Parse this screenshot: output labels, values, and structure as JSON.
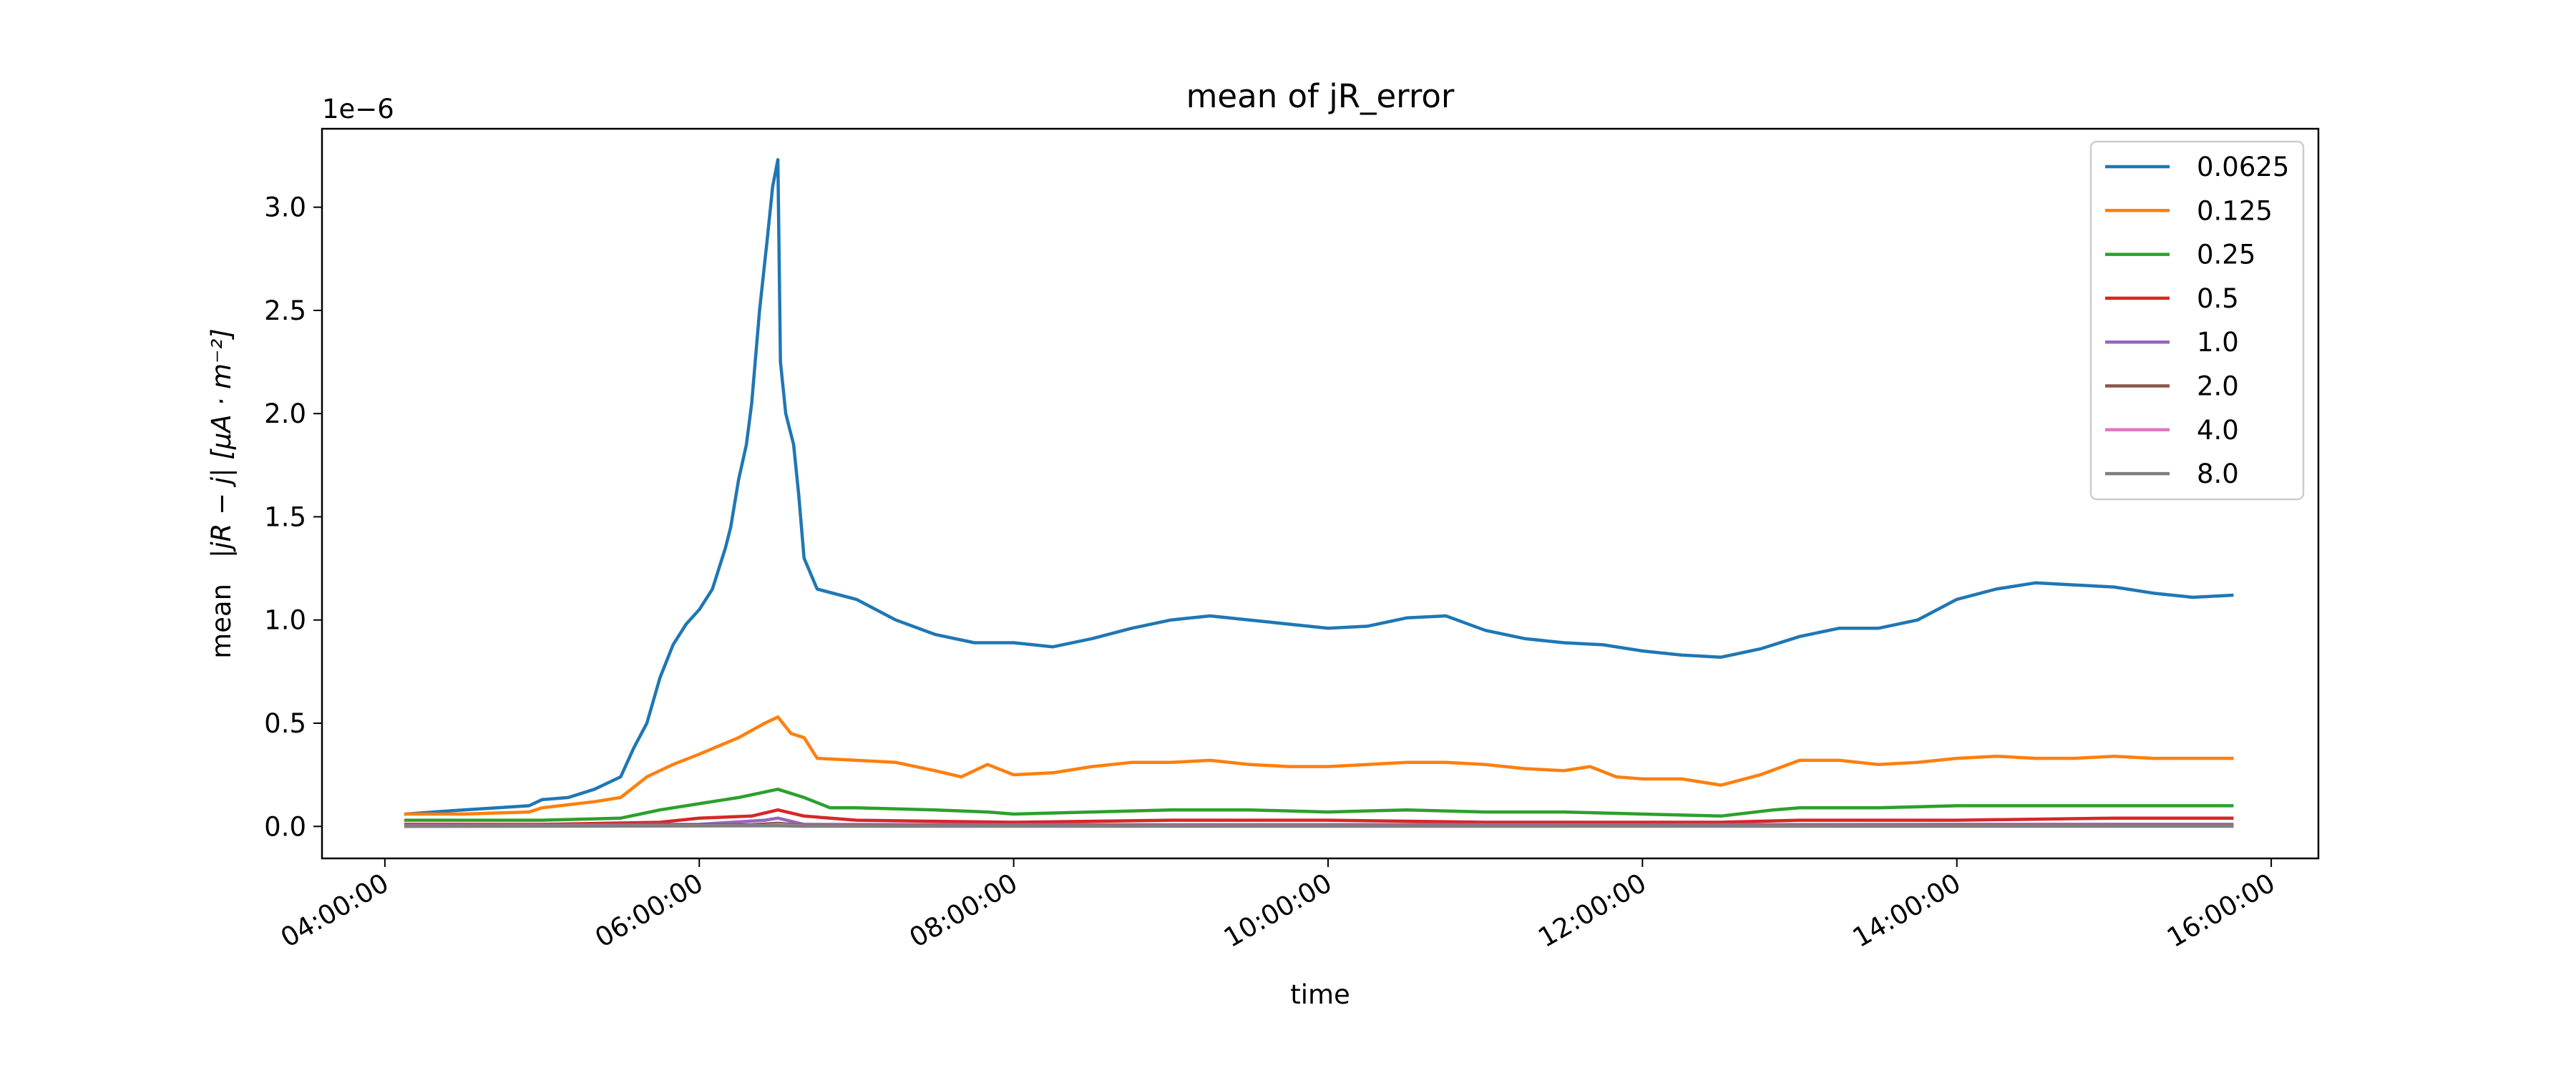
{
  "chart_data": {
    "type": "line",
    "title": "mean of jR_error",
    "xlabel": "time",
    "ylabel_prefix": "mean",
    "ylabel_math": "|jR − j| [μA · m⁻²]",
    "y_offset_label": "1e−6",
    "y_scale_factor": 1e-06,
    "xlim": [
      "03:36:00",
      "16:18:00"
    ],
    "ylim": [
      -0.155,
      3.38
    ],
    "x_ticks": [
      "04:00:00",
      "06:00:00",
      "08:00:00",
      "10:00:00",
      "12:00:00",
      "14:00:00",
      "16:00:00"
    ],
    "y_ticks": [
      "0.0",
      "0.5",
      "1.0",
      "1.5",
      "2.0",
      "2.5",
      "3.0"
    ],
    "grid": false,
    "legend_position": "upper right",
    "series": [
      {
        "name": "0.0625",
        "color": "#1f77b4",
        "points": [
          [
            "04:08:00",
            0.06
          ],
          [
            "04:30:00",
            0.08
          ],
          [
            "04:55:00",
            0.1
          ],
          [
            "05:00:00",
            0.13
          ],
          [
            "05:10:00",
            0.14
          ],
          [
            "05:20:00",
            0.18
          ],
          [
            "05:30:00",
            0.24
          ],
          [
            "05:35:00",
            0.38
          ],
          [
            "05:40:00",
            0.5
          ],
          [
            "05:45:00",
            0.72
          ],
          [
            "05:50:00",
            0.88
          ],
          [
            "05:55:00",
            0.98
          ],
          [
            "06:00:00",
            1.05
          ],
          [
            "06:05:00",
            1.15
          ],
          [
            "06:10:00",
            1.35
          ],
          [
            "06:12:00",
            1.45
          ],
          [
            "06:15:00",
            1.68
          ],
          [
            "06:18:00",
            1.85
          ],
          [
            "06:20:00",
            2.05
          ],
          [
            "06:23:00",
            2.5
          ],
          [
            "06:26:00",
            2.85
          ],
          [
            "06:28:00",
            3.1
          ],
          [
            "06:30:00",
            3.23
          ],
          [
            "06:31:00",
            2.25
          ],
          [
            "06:33:00",
            2.0
          ],
          [
            "06:36:00",
            1.85
          ],
          [
            "06:38:00",
            1.6
          ],
          [
            "06:40:00",
            1.3
          ],
          [
            "06:45:00",
            1.15
          ],
          [
            "07:00:00",
            1.1
          ],
          [
            "07:15:00",
            1.0
          ],
          [
            "07:30:00",
            0.93
          ],
          [
            "07:45:00",
            0.89
          ],
          [
            "08:00:00",
            0.89
          ],
          [
            "08:15:00",
            0.87
          ],
          [
            "08:30:00",
            0.91
          ],
          [
            "08:45:00",
            0.96
          ],
          [
            "09:00:00",
            1.0
          ],
          [
            "09:15:00",
            1.02
          ],
          [
            "09:30:00",
            1.0
          ],
          [
            "09:45:00",
            0.98
          ],
          [
            "10:00:00",
            0.96
          ],
          [
            "10:15:00",
            0.97
          ],
          [
            "10:30:00",
            1.01
          ],
          [
            "10:45:00",
            1.02
          ],
          [
            "11:00:00",
            0.95
          ],
          [
            "11:15:00",
            0.91
          ],
          [
            "11:30:00",
            0.89
          ],
          [
            "11:45:00",
            0.88
          ],
          [
            "12:00:00",
            0.85
          ],
          [
            "12:15:00",
            0.83
          ],
          [
            "12:30:00",
            0.82
          ],
          [
            "12:45:00",
            0.86
          ],
          [
            "13:00:00",
            0.92
          ],
          [
            "13:15:00",
            0.96
          ],
          [
            "13:30:00",
            0.96
          ],
          [
            "13:45:00",
            1.0
          ],
          [
            "14:00:00",
            1.1
          ],
          [
            "14:15:00",
            1.15
          ],
          [
            "14:30:00",
            1.18
          ],
          [
            "14:45:00",
            1.17
          ],
          [
            "15:00:00",
            1.16
          ],
          [
            "15:15:00",
            1.13
          ],
          [
            "15:30:00",
            1.11
          ],
          [
            "15:45:00",
            1.12
          ]
        ]
      },
      {
        "name": "0.125",
        "color": "#ff7f0e",
        "points": [
          [
            "04:08:00",
            0.06
          ],
          [
            "04:30:00",
            0.06
          ],
          [
            "04:55:00",
            0.07
          ],
          [
            "05:00:00",
            0.09
          ],
          [
            "05:20:00",
            0.12
          ],
          [
            "05:30:00",
            0.14
          ],
          [
            "05:40:00",
            0.24
          ],
          [
            "05:50:00",
            0.3
          ],
          [
            "06:00:00",
            0.35
          ],
          [
            "06:15:00",
            0.43
          ],
          [
            "06:25:00",
            0.5
          ],
          [
            "06:30:00",
            0.53
          ],
          [
            "06:35:00",
            0.45
          ],
          [
            "06:40:00",
            0.43
          ],
          [
            "06:45:00",
            0.33
          ],
          [
            "07:00:00",
            0.32
          ],
          [
            "07:15:00",
            0.31
          ],
          [
            "07:30:00",
            0.27
          ],
          [
            "07:40:00",
            0.24
          ],
          [
            "07:50:00",
            0.3
          ],
          [
            "08:00:00",
            0.25
          ],
          [
            "08:15:00",
            0.26
          ],
          [
            "08:30:00",
            0.29
          ],
          [
            "08:45:00",
            0.31
          ],
          [
            "09:00:00",
            0.31
          ],
          [
            "09:15:00",
            0.32
          ],
          [
            "09:30:00",
            0.3
          ],
          [
            "09:45:00",
            0.29
          ],
          [
            "10:00:00",
            0.29
          ],
          [
            "10:15:00",
            0.3
          ],
          [
            "10:30:00",
            0.31
          ],
          [
            "10:45:00",
            0.31
          ],
          [
            "11:00:00",
            0.3
          ],
          [
            "11:15:00",
            0.28
          ],
          [
            "11:30:00",
            0.27
          ],
          [
            "11:40:00",
            0.29
          ],
          [
            "11:50:00",
            0.24
          ],
          [
            "12:00:00",
            0.23
          ],
          [
            "12:15:00",
            0.23
          ],
          [
            "12:30:00",
            0.2
          ],
          [
            "12:45:00",
            0.25
          ],
          [
            "13:00:00",
            0.32
          ],
          [
            "13:15:00",
            0.32
          ],
          [
            "13:30:00",
            0.3
          ],
          [
            "13:45:00",
            0.31
          ],
          [
            "14:00:00",
            0.33
          ],
          [
            "14:15:00",
            0.34
          ],
          [
            "14:30:00",
            0.33
          ],
          [
            "14:45:00",
            0.33
          ],
          [
            "15:00:00",
            0.34
          ],
          [
            "15:15:00",
            0.33
          ],
          [
            "15:30:00",
            0.33
          ],
          [
            "15:45:00",
            0.33
          ]
        ]
      },
      {
        "name": "0.25",
        "color": "#2ca02c",
        "points": [
          [
            "04:08:00",
            0.03
          ],
          [
            "04:30:00",
            0.03
          ],
          [
            "05:00:00",
            0.03
          ],
          [
            "05:30:00",
            0.04
          ],
          [
            "05:45:00",
            0.08
          ],
          [
            "06:00:00",
            0.11
          ],
          [
            "06:15:00",
            0.14
          ],
          [
            "06:30:00",
            0.18
          ],
          [
            "06:40:00",
            0.14
          ],
          [
            "06:50:00",
            0.09
          ],
          [
            "07:00:00",
            0.09
          ],
          [
            "07:30:00",
            0.08
          ],
          [
            "07:50:00",
            0.07
          ],
          [
            "08:00:00",
            0.06
          ],
          [
            "08:30:00",
            0.07
          ],
          [
            "09:00:00",
            0.08
          ],
          [
            "09:30:00",
            0.08
          ],
          [
            "10:00:00",
            0.07
          ],
          [
            "10:30:00",
            0.08
          ],
          [
            "11:00:00",
            0.07
          ],
          [
            "11:30:00",
            0.07
          ],
          [
            "12:00:00",
            0.06
          ],
          [
            "12:30:00",
            0.05
          ],
          [
            "12:50:00",
            0.08
          ],
          [
            "13:00:00",
            0.09
          ],
          [
            "13:30:00",
            0.09
          ],
          [
            "14:00:00",
            0.1
          ],
          [
            "14:30:00",
            0.1
          ],
          [
            "15:00:00",
            0.1
          ],
          [
            "15:45:00",
            0.1
          ]
        ]
      },
      {
        "name": "0.5",
        "color": "#d62728",
        "points": [
          [
            "04:08:00",
            0.01
          ],
          [
            "05:00:00",
            0.01
          ],
          [
            "05:45:00",
            0.02
          ],
          [
            "06:00:00",
            0.04
          ],
          [
            "06:20:00",
            0.05
          ],
          [
            "06:30:00",
            0.08
          ],
          [
            "06:40:00",
            0.05
          ],
          [
            "07:00:00",
            0.03
          ],
          [
            "08:00:00",
            0.02
          ],
          [
            "09:00:00",
            0.03
          ],
          [
            "10:00:00",
            0.03
          ],
          [
            "11:00:00",
            0.02
          ],
          [
            "12:00:00",
            0.02
          ],
          [
            "12:30:00",
            0.02
          ],
          [
            "13:00:00",
            0.03
          ],
          [
            "14:00:00",
            0.03
          ],
          [
            "15:00:00",
            0.04
          ],
          [
            "15:45:00",
            0.04
          ]
        ]
      },
      {
        "name": "1.0",
        "color": "#9467bd",
        "points": [
          [
            "04:08:00",
            0.005
          ],
          [
            "06:00:00",
            0.01
          ],
          [
            "06:25:00",
            0.03
          ],
          [
            "06:30:00",
            0.04
          ],
          [
            "06:40:00",
            0.01
          ],
          [
            "08:00:00",
            0.008
          ],
          [
            "10:00:00",
            0.009
          ],
          [
            "12:00:00",
            0.008
          ],
          [
            "14:00:00",
            0.01
          ],
          [
            "15:45:00",
            0.01
          ]
        ]
      },
      {
        "name": "2.0",
        "color": "#8c564b",
        "points": [
          [
            "04:08:00",
            0.002
          ],
          [
            "06:20:00",
            0.008
          ],
          [
            "06:30:00",
            0.015
          ],
          [
            "06:40:00",
            0.004
          ],
          [
            "10:00:00",
            0.003
          ],
          [
            "15:45:00",
            0.004
          ]
        ]
      },
      {
        "name": "4.0",
        "color": "#e377c2",
        "points": [
          [
            "04:08:00",
            0.001
          ],
          [
            "06:25:00",
            0.004
          ],
          [
            "06:30:00",
            0.008
          ],
          [
            "06:40:00",
            0.002
          ],
          [
            "15:45:00",
            0.002
          ]
        ]
      },
      {
        "name": "8.0",
        "color": "#7f7f7f",
        "points": [
          [
            "04:08:00",
            0.0
          ],
          [
            "06:30:00",
            0.003
          ],
          [
            "06:40:00",
            0.001
          ],
          [
            "15:45:00",
            0.001
          ]
        ]
      }
    ]
  }
}
